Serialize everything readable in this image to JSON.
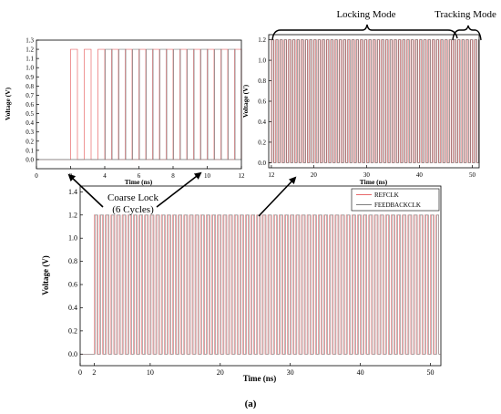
{
  "chart_data": [
    {
      "type": "line",
      "title": "",
      "xlabel": "Time (ns)",
      "ylabel": "Voltage (V)",
      "xlim": [
        0,
        12
      ],
      "ylim": [
        -0.1,
        1.3
      ],
      "x_ticks": [
        "0",
        "2",
        "4",
        "6",
        "8",
        "10",
        "12"
      ],
      "y_ticks": [
        "0.0",
        "0.1",
        "0.2",
        "0.3",
        "0.4",
        "0.5",
        "0.6",
        "0.7",
        "0.8",
        "0.9",
        "1.0",
        "1.1",
        "1.2",
        "1.3"
      ],
      "series": [
        {
          "name": "",
          "color": "#e8696b",
          "period": 0.8,
          "width": 0.4,
          "start": 2.0,
          "end": 12.0,
          "high": 1.2,
          "low": 0.0
        },
        {
          "name": "",
          "color": "#7f7f7f",
          "period": 0.8,
          "width": 0.4,
          "start": 4.0,
          "end": 12.0,
          "high": 1.2,
          "low": 0.0
        }
      ],
      "grid": false
    },
    {
      "type": "line",
      "title": "",
      "xlabel": "Time (ns)",
      "ylabel": "Voltage (V)",
      "xlim": [
        11.5,
        51.3
      ],
      "ylim": [
        -0.05,
        1.25
      ],
      "x_ticks": [
        "12",
        "20",
        "30",
        "40",
        "50"
      ],
      "y_ticks": [
        "0.0",
        "0.2",
        "0.4",
        "0.6",
        "0.8",
        "1.0",
        "1.2"
      ],
      "series": [
        {
          "name": "",
          "color": "#e8696b",
          "period": 0.8,
          "width": 0.4,
          "start": 12.0,
          "end": 51.2,
          "high": 1.2,
          "low": 0.0
        },
        {
          "name": "",
          "color": "#7f7f7f",
          "period": 0.8,
          "width": 0.4,
          "start": 12.0,
          "end": 51.2,
          "high": 1.2,
          "low": 0.0
        }
      ],
      "grid": false
    },
    {
      "type": "line",
      "title": "",
      "xlabel": "Time (ns)",
      "ylabel": "Voltage (V)",
      "xlim": [
        0,
        51.5
      ],
      "ylim": [
        -0.1,
        1.45
      ],
      "x_ticks": [
        "0",
        "2",
        "10",
        "20",
        "30",
        "40",
        "50"
      ],
      "y_ticks": [
        "0.0",
        "0.2",
        "0.4",
        "0.6",
        "0.8",
        "1.0",
        "1.2",
        "1.4"
      ],
      "series": [
        {
          "name": "REFCLK",
          "color": "#e8696b",
          "period": 0.8,
          "width": 0.4,
          "start": 2.0,
          "end": 51.2,
          "high": 1.2,
          "low": 0.0
        },
        {
          "name": "FEEDBACKCLK",
          "color": "#7f7f7f",
          "period": 0.8,
          "width": 0.4,
          "start": 2.0,
          "end": 51.2,
          "high": 1.2,
          "low": 0.0
        }
      ],
      "legend": "top-right",
      "grid": false
    }
  ],
  "annotations": {
    "locking_mode": "Locking Mode",
    "tracking_mode": "Tracking Mode",
    "coarse_lock_line1": "Coarse Lock",
    "coarse_lock_line2": "(6 Cycles)"
  },
  "caption": "(a)"
}
